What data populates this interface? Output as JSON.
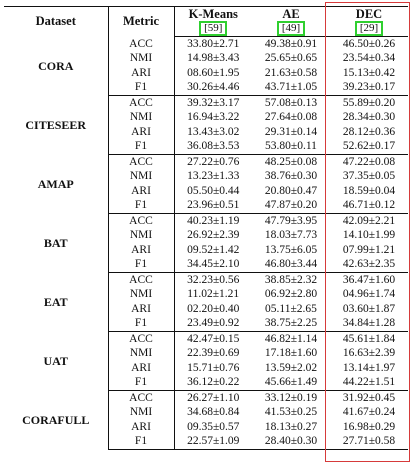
{
  "headers": {
    "dataset": "Dataset",
    "metric": "Metric",
    "methods": [
      {
        "name": "K-Means",
        "cite": "[59]"
      },
      {
        "name": "AE",
        "cite": "[49]"
      },
      {
        "name": "DEC",
        "cite": "[29]"
      }
    ]
  },
  "colors": {
    "cite_box": "#2fcf2f",
    "dec_box": "#d63a3a"
  },
  "groups": [
    {
      "dataset": "CORA",
      "rows": [
        {
          "metric": "ACC",
          "values": [
            "33.80±2.71",
            "49.38±0.91",
            "46.50±0.26"
          ]
        },
        {
          "metric": "NMI",
          "values": [
            "14.98±3.43",
            "25.65±0.65",
            "23.54±0.34"
          ]
        },
        {
          "metric": "ARI",
          "values": [
            "08.60±1.95",
            "21.63±0.58",
            "15.13±0.42"
          ]
        },
        {
          "metric": "F1",
          "values": [
            "30.26±4.46",
            "43.71±1.05",
            "39.23±0.17"
          ]
        }
      ]
    },
    {
      "dataset": "CITESEER",
      "rows": [
        {
          "metric": "ACC",
          "values": [
            "39.32±3.17",
            "57.08±0.13",
            "55.89±0.20"
          ]
        },
        {
          "metric": "NMI",
          "values": [
            "16.94±3.22",
            "27.64±0.08",
            "28.34±0.30"
          ]
        },
        {
          "metric": "ARI",
          "values": [
            "13.43±3.02",
            "29.31±0.14",
            "28.12±0.36"
          ]
        },
        {
          "metric": "F1",
          "values": [
            "36.08±3.53",
            "53.80±0.11",
            "52.62±0.17"
          ]
        }
      ]
    },
    {
      "dataset": "AMAP",
      "rows": [
        {
          "metric": "ACC",
          "values": [
            "27.22±0.76",
            "48.25±0.08",
            "47.22±0.08"
          ]
        },
        {
          "metric": "NMI",
          "values": [
            "13.23±1.33",
            "38.76±0.30",
            "37.35±0.05"
          ]
        },
        {
          "metric": "ARI",
          "values": [
            "05.50±0.44",
            "20.80±0.47",
            "18.59±0.04"
          ]
        },
        {
          "metric": "F1",
          "values": [
            "23.96±0.51",
            "47.87±0.20",
            "46.71±0.12"
          ]
        }
      ]
    },
    {
      "dataset": "BAT",
      "rows": [
        {
          "metric": "ACC",
          "values": [
            "40.23±1.19",
            "47.79±3.95",
            "42.09±2.21"
          ]
        },
        {
          "metric": "NMI",
          "values": [
            "26.92±2.39",
            "18.03±7.73",
            "14.10±1.99"
          ]
        },
        {
          "metric": "ARI",
          "values": [
            "09.52±1.42",
            "13.75±6.05",
            "07.99±1.21"
          ]
        },
        {
          "metric": "F1",
          "values": [
            "34.45±2.10",
            "46.80±3.44",
            "42.63±2.35"
          ]
        }
      ]
    },
    {
      "dataset": "EAT",
      "rows": [
        {
          "metric": "ACC",
          "values": [
            "32.23±0.56",
            "38.85±2.32",
            "36.47±1.60"
          ]
        },
        {
          "metric": "NMI",
          "values": [
            "11.02±1.21",
            "06.92±2.80",
            "04.96±1.74"
          ]
        },
        {
          "metric": "ARI",
          "values": [
            "02.20±0.40",
            "05.11±2.65",
            "03.60±1.87"
          ]
        },
        {
          "metric": "F1",
          "values": [
            "23.49±0.92",
            "38.75±2.25",
            "34.84±1.28"
          ]
        }
      ]
    },
    {
      "dataset": "UAT",
      "rows": [
        {
          "metric": "ACC",
          "values": [
            "42.47±0.15",
            "46.82±1.14",
            "45.61±1.84"
          ]
        },
        {
          "metric": "NMI",
          "values": [
            "22.39±0.69",
            "17.18±1.60",
            "16.63±2.39"
          ]
        },
        {
          "metric": "ARI",
          "values": [
            "15.71±0.76",
            "13.59±2.02",
            "13.14±1.97"
          ]
        },
        {
          "metric": "F1",
          "values": [
            "36.12±0.22",
            "45.66±1.49",
            "44.22±1.51"
          ]
        }
      ]
    },
    {
      "dataset": "CORAFULL",
      "rows": [
        {
          "metric": "ACC",
          "values": [
            "26.27±1.10",
            "33.12±0.19",
            "31.92±0.45"
          ]
        },
        {
          "metric": "NMI",
          "values": [
            "34.68±0.84",
            "41.53±0.25",
            "41.67±0.24"
          ]
        },
        {
          "metric": "ARI",
          "values": [
            "09.35±0.57",
            "18.13±0.27",
            "16.98±0.29"
          ]
        },
        {
          "metric": "F1",
          "values": [
            "22.57±1.09",
            "28.40±0.30",
            "27.71±0.58"
          ]
        }
      ]
    }
  ]
}
